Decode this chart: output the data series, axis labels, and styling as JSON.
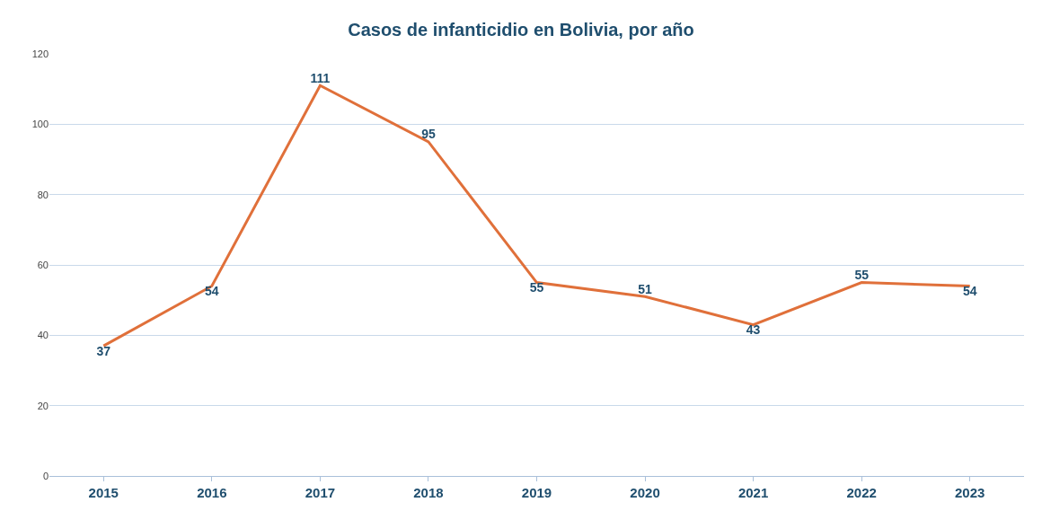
{
  "chart_data": {
    "type": "line",
    "title": "Casos de infanticidio en Bolivia, por año",
    "categories": [
      "2015",
      "2016",
      "2017",
      "2018",
      "2019",
      "2020",
      "2021",
      "2022",
      "2023"
    ],
    "series": [
      {
        "color": "#e0703a",
        "values": [
          37,
          54,
          111,
          95,
          55,
          51,
          43,
          55,
          54
        ]
      }
    ],
    "ylim": [
      0,
      120
    ],
    "yticks": [
      0,
      20,
      40,
      60,
      80,
      100,
      120
    ],
    "grid": "y",
    "marker": "none",
    "line_style": "solid",
    "data_labels": true
  }
}
